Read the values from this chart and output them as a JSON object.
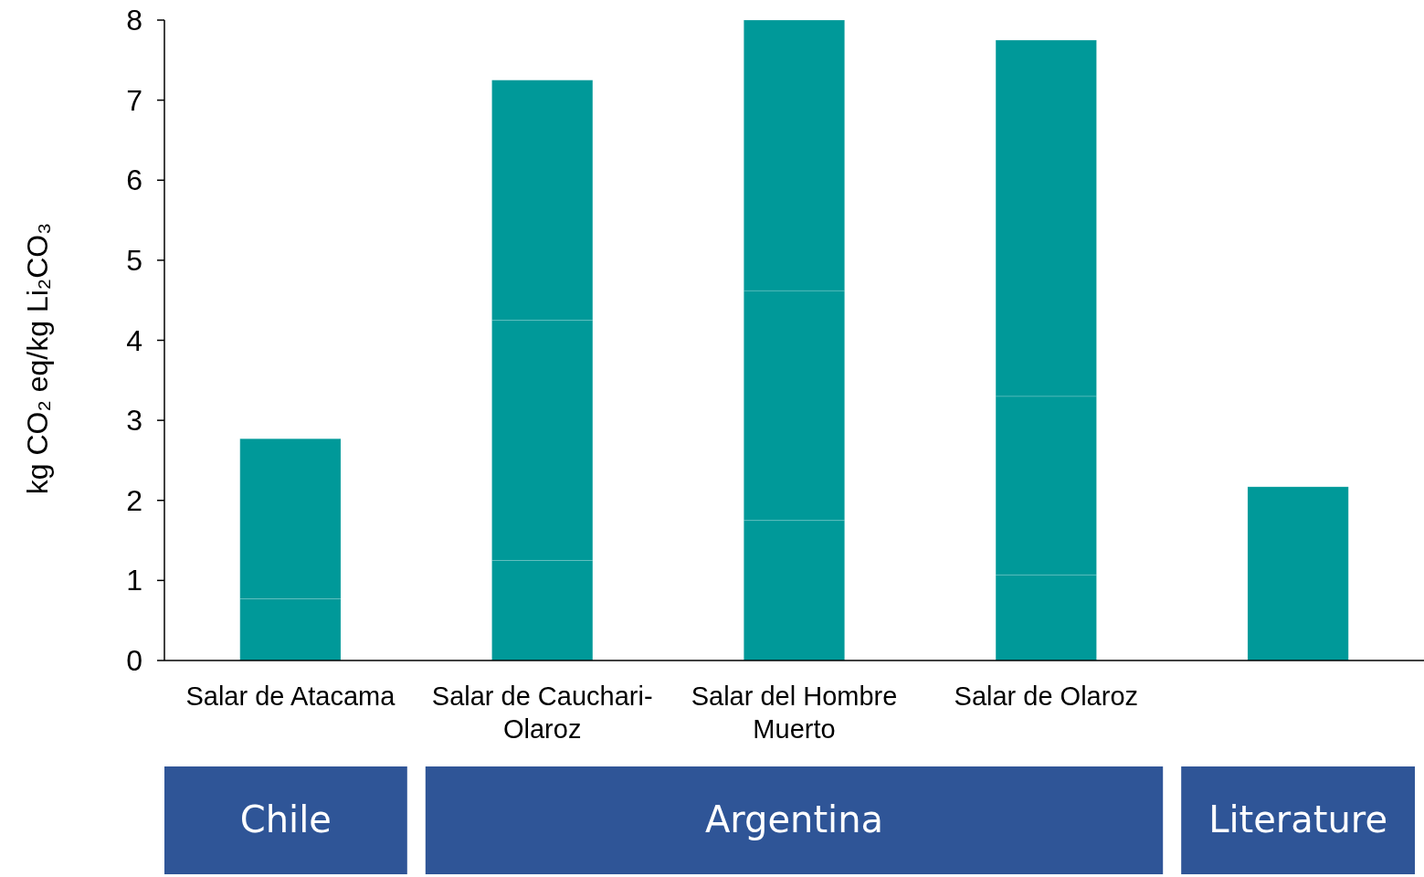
{
  "chart_data": {
    "type": "bar",
    "stacked": true,
    "ylabel": "kg CO₂ eq/kg Li₂CO₃",
    "categories": [
      "Salar de Atacama",
      "Salar de Cauchari-Olaroz",
      "Salar del Hombre Muerto",
      "Salar de Olaroz",
      null
    ],
    "series": [
      {
        "color": "#009999",
        "values": [
          0.77,
          1.25,
          1.75,
          1.07,
          2.17
        ]
      },
      {
        "color": "#009999",
        "values": [
          2.0,
          3.0,
          2.87,
          2.23,
          null
        ]
      },
      {
        "color": "#009999",
        "values": [
          null,
          3.0,
          3.38,
          4.45,
          null
        ]
      }
    ],
    "ylim": [
      0,
      8
    ],
    "yticks": [
      0,
      1,
      2,
      3,
      4,
      5,
      6,
      7,
      8
    ],
    "grid": false,
    "annotations": [
      "Chile",
      "Argentina",
      "Literature"
    ]
  }
}
